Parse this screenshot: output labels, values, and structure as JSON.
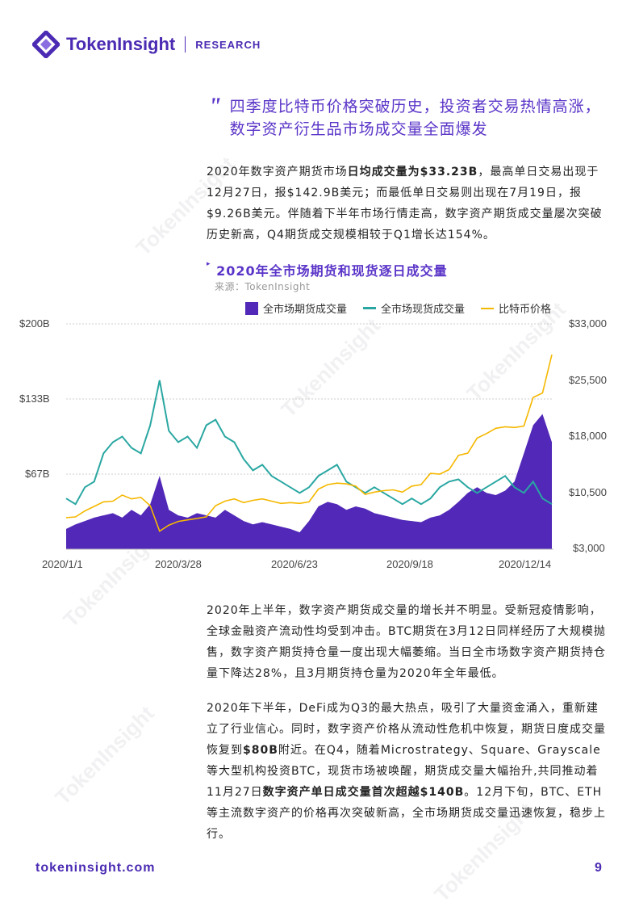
{
  "header": {
    "brand": "TokenInsight",
    "section": "RESEARCH"
  },
  "quote": {
    "line1": "四季度比特币价格突破历史，投资者交易热情高涨，",
    "line2": "数字资产衍生品市场成交量全面爆发"
  },
  "para1": {
    "t1": "2020年数字资产期货市场",
    "b1": "日均成交量为$33.23B",
    "t2": "，最高单日交易出现于12月27日，报$142.9B美元；而最低单日交易则出现在7月19日，报$9.26B美元。伴随着下半年市场行情走高，数字资产期货成交量屡次突破历史新高，Q4期货成交规模相较于Q1增长达154%。"
  },
  "chart_data": {
    "type": "area+line",
    "title": "2020年全市场期货和现货逐日成交量",
    "source": "来源：TokenInsight",
    "legend": [
      "全市场期货成交量",
      "全市场现货成交量",
      "比特币价格"
    ],
    "colors": {
      "futures": "#5128b8",
      "spot": "#2aa7a2",
      "btc": "#f5b800"
    },
    "x_ticks": [
      "2020/1/1",
      "2020/3/28",
      "2020/6/23",
      "2020/9/18",
      "2020/12/14"
    ],
    "y_left_ticks": [
      "$67B",
      "$133B",
      "$200B"
    ],
    "y_right_ticks": [
      "$3,000",
      "$10,500",
      "$18,000",
      "$25,500",
      "$33,000"
    ],
    "y_left_range": [
      0,
      200
    ],
    "y_right_range": [
      3000,
      33000
    ],
    "x_unit": "week of 2020",
    "series": [
      {
        "name": "全市场期货成交量",
        "unit": "B USD",
        "values": [
          18,
          22,
          25,
          28,
          30,
          32,
          28,
          35,
          30,
          40,
          65,
          35,
          30,
          28,
          32,
          30,
          28,
          35,
          30,
          25,
          22,
          24,
          22,
          20,
          18,
          15,
          25,
          38,
          42,
          40,
          35,
          38,
          36,
          32,
          30,
          28,
          26,
          25,
          24,
          28,
          30,
          35,
          42,
          50,
          55,
          50,
          48,
          52,
          60,
          85,
          110,
          120,
          95
        ]
      },
      {
        "name": "全市场现货成交量",
        "unit": "B USD",
        "values": [
          45,
          40,
          55,
          60,
          85,
          95,
          100,
          90,
          85,
          110,
          150,
          105,
          95,
          100,
          90,
          110,
          115,
          100,
          95,
          80,
          70,
          75,
          65,
          60,
          55,
          50,
          55,
          65,
          70,
          75,
          60,
          55,
          50,
          55,
          50,
          45,
          40,
          45,
          40,
          45,
          55,
          60,
          62,
          55,
          50,
          55,
          60,
          65,
          55,
          50,
          60,
          45,
          40
        ]
      },
      {
        "name": "比特币价格",
        "unit": "USD",
        "values": [
          7200,
          7300,
          8100,
          8700,
          9300,
          9400,
          10200,
          9700,
          9900,
          8800,
          5400,
          6200,
          6700,
          6900,
          7100,
          7300,
          8800,
          9400,
          9700,
          9200,
          9500,
          9700,
          9400,
          9100,
          9200,
          9100,
          9300,
          11000,
          11600,
          11800,
          11700,
          11400,
          10300,
          10600,
          10800,
          10900,
          10600,
          11400,
          11600,
          13100,
          13000,
          13600,
          15500,
          15800,
          17800,
          18400,
          19100,
          19300,
          19200,
          19400,
          23200,
          23800,
          28900
        ]
      }
    ]
  },
  "para2": "2020年上半年，数字资产期货成交量的增长并不明显。受新冠疫情影响，全球金融资产流动性均受到冲击。BTC期货在3月12日同样经历了大规模抛售，数字资产期货持仓量一度出现大幅萎缩。当日全市场数字资产期货持仓量下降达28%，且3月期货持仓量为2020年全年最低。",
  "para3": {
    "t1": "2020年下半年，DeFi成为Q3的最大热点，吸引了大量资金涌入，重新建立了行业信心。同时，数字资产价格从流动性危机中恢复，期货日度成交量恢复到",
    "b1": "$80B",
    "t2": "附近。在Q4，随着Microstrategy、Square、Grayscale等大型机构投资BTC，现货市场被唤醒，期货成交量大幅抬升,共同推动着11月27日",
    "b2": "数字资产单日成交量首次超越$140B",
    "t3": "。12月下旬，BTC、ETH等主流数字资产的价格再次突破新高，全市场期货成交量迅速恢复，稳步上行。"
  },
  "footer": {
    "url": "tokeninsight.com",
    "page": "9"
  }
}
